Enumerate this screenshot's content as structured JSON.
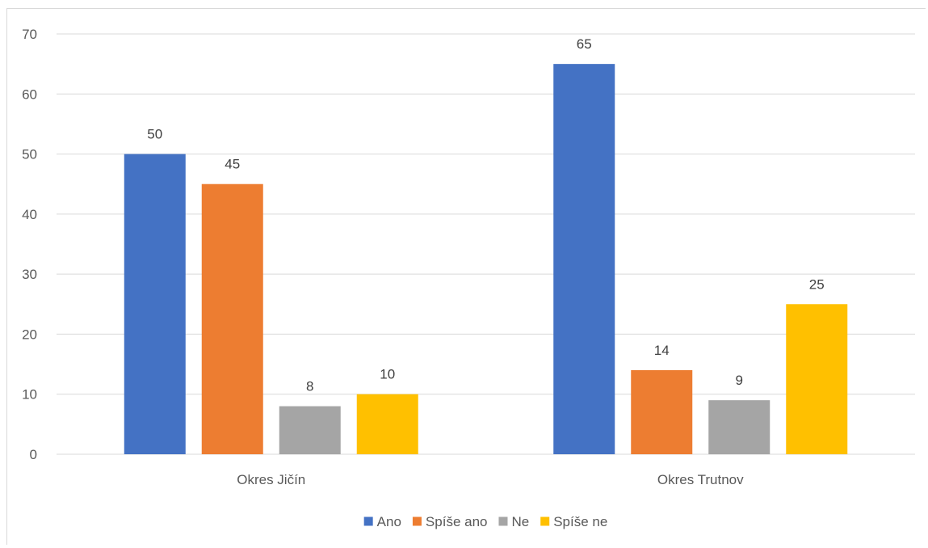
{
  "chart_data": {
    "type": "bar",
    "title": "",
    "xlabel": "",
    "ylabel": "",
    "categories": [
      "Okres Jičín",
      "Okres Trutnov"
    ],
    "series": [
      {
        "name": "Ano",
        "color": "#4472C4",
        "values": [
          50,
          65
        ]
      },
      {
        "name": "Spíše ano",
        "color": "#ED7D31",
        "values": [
          45,
          14
        ]
      },
      {
        "name": "Ne",
        "color": "#A5A5A5",
        "values": [
          8,
          9
        ]
      },
      {
        "name": "Spíše ne",
        "color": "#FFC000",
        "values": [
          10,
          25
        ]
      }
    ],
    "ylim": [
      0,
      70
    ],
    "yticks": [
      0,
      10,
      20,
      30,
      40,
      50,
      60,
      70
    ],
    "grid": true,
    "legend_position": "bottom",
    "data_labels": true
  }
}
